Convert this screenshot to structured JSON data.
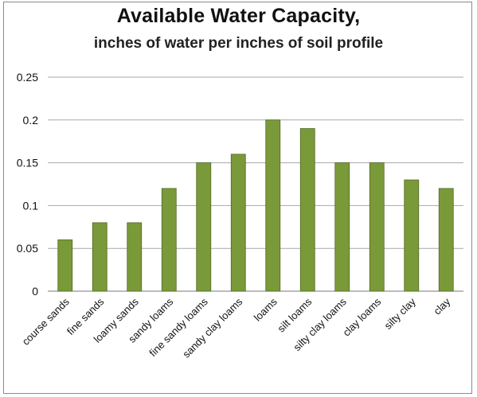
{
  "chart_data": {
    "type": "bar",
    "title": "Available Water Capacity,",
    "subtitle": "inches of water per inches of soil profile",
    "xlabel": "",
    "ylabel": "",
    "ylim": [
      0,
      0.25
    ],
    "y_ticks": [
      "0",
      "0.05",
      "0.1",
      "0.15",
      "0.2",
      "0.25"
    ],
    "grid": true,
    "legend": "none",
    "bar_color": "#7a9a3a",
    "categories": [
      "course sands",
      "fine sands",
      "loamy sands",
      "sandy loams",
      "fine sandy loams",
      "sandy clay loams",
      "loams",
      "silt loams",
      "silty clay loams",
      "clay loams",
      "silty clay",
      "clay"
    ],
    "values": [
      0.06,
      0.08,
      0.08,
      0.12,
      0.15,
      0.16,
      0.2,
      0.19,
      0.15,
      0.15,
      0.13,
      0.12
    ]
  }
}
